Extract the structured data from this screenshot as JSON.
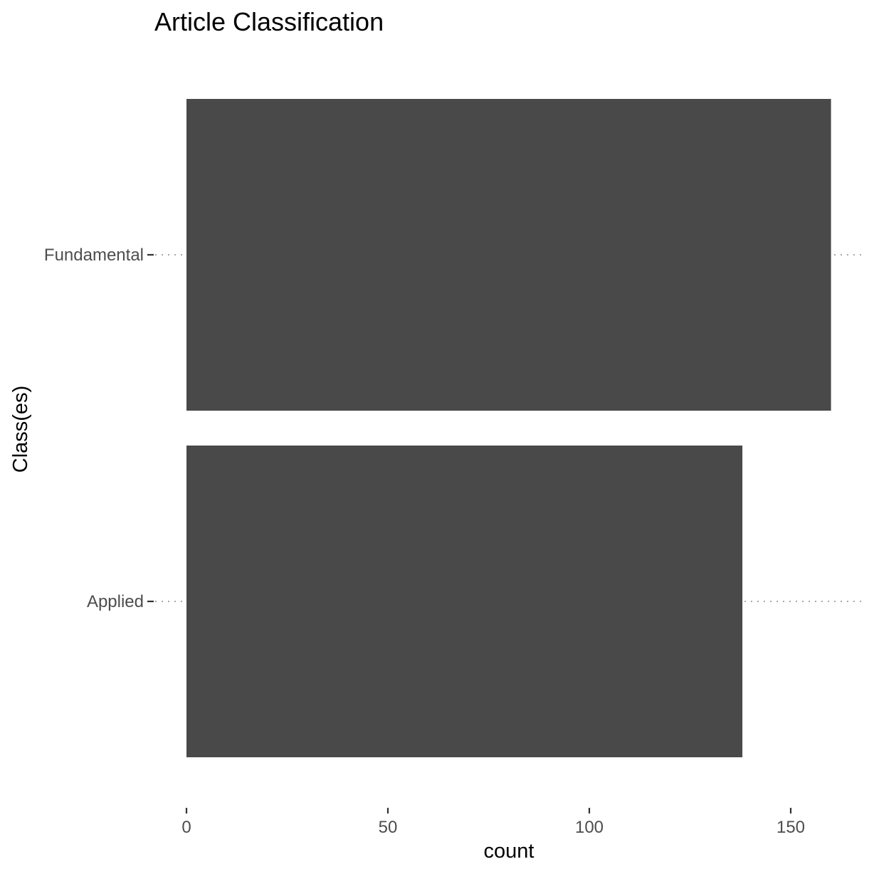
{
  "chart_data": {
    "type": "bar",
    "orientation": "horizontal",
    "title": "Article Classification",
    "xlabel": "count",
    "ylabel": "Class(es)",
    "categories": [
      "Fundamental",
      "Applied"
    ],
    "values": [
      160,
      138
    ],
    "xlim": [
      0,
      167
    ],
    "xticks": [
      0,
      50,
      100,
      150
    ],
    "grid": "dotted horizontal guides at category positions",
    "bar_color": "#494949",
    "legend": "none"
  }
}
